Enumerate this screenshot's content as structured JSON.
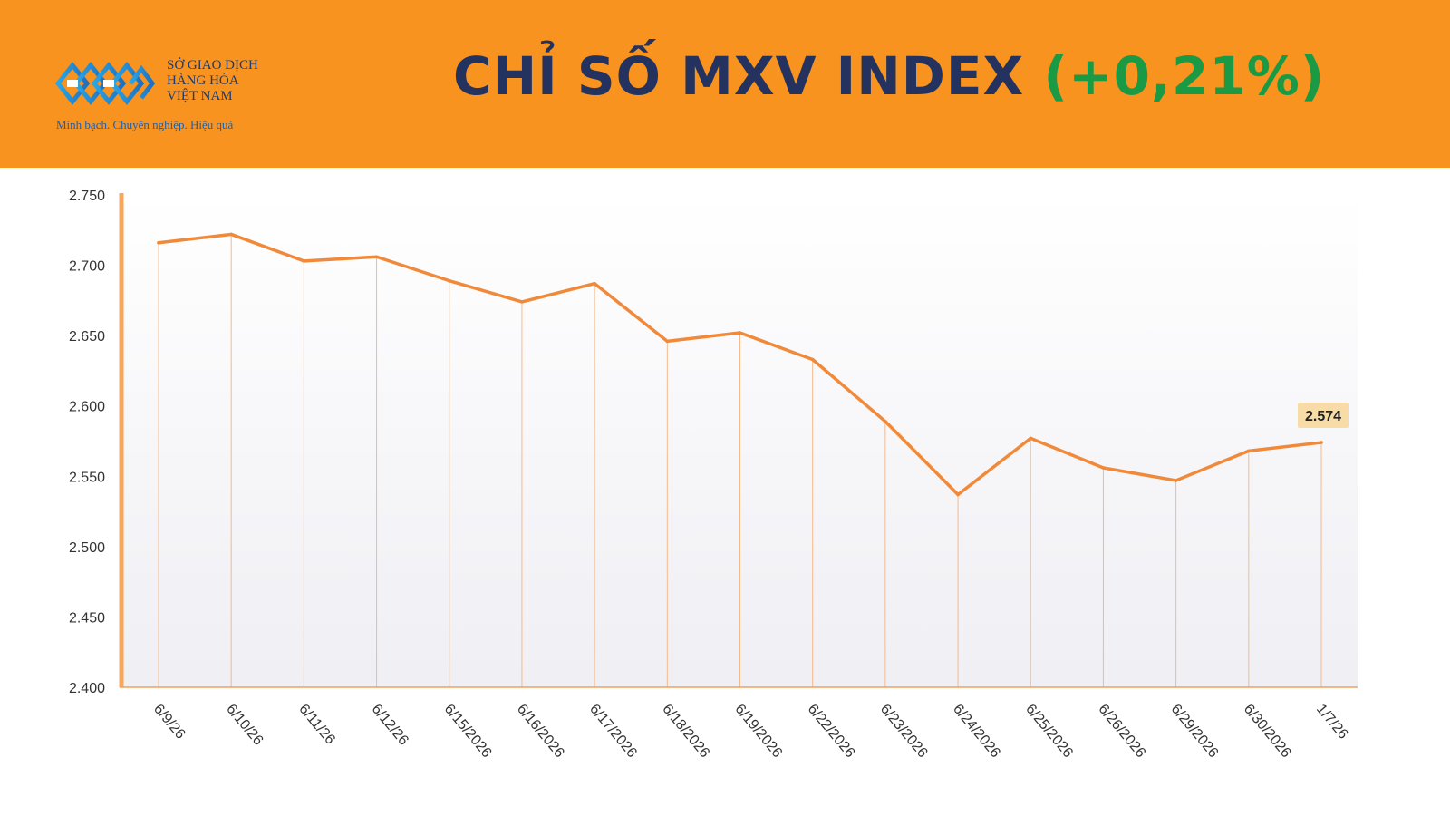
{
  "header": {
    "logo": {
      "name_lines": [
        "SỞ GIAO DỊCH",
        "HÀNG HÓA",
        "VIỆT NAM"
      ],
      "slogan": "Minh bạch. Chuyên nghiệp. Hiệu quả"
    },
    "title_main": "CHỈ SỐ MXV INDEX",
    "title_change": "(+0,21%)",
    "colors": {
      "background": "#f7931e",
      "title": "#23325e",
      "change": "#1a9a44"
    }
  },
  "chart_data": {
    "type": "line",
    "x": [
      "6/9/26",
      "6/10/26",
      "6/11/26",
      "6/12/26",
      "6/15/2026",
      "6/16/2026",
      "6/17/2026",
      "6/18/2026",
      "6/19/2026",
      "6/22/2026",
      "6/23/2026",
      "6/24/2026",
      "6/25/2026",
      "6/26/2026",
      "6/29/2026",
      "6/30/2026",
      "1/7/26"
    ],
    "series": [
      {
        "values": [
          2716,
          2722,
          2703,
          2706,
          2689,
          2674,
          2687,
          2646,
          2652,
          2633,
          2589,
          2537,
          2577,
          2556,
          2547,
          2568,
          2574
        ]
      }
    ],
    "y_ticks": [
      "2.400",
      "2.450",
      "2.500",
      "2.550",
      "2.600",
      "2.650",
      "2.700",
      "2.750"
    ],
    "ylim": [
      2400,
      2750
    ],
    "last_value_label": "2.574",
    "line_color": "#f08a3a",
    "grid": false,
    "title": "",
    "xlabel": "",
    "ylabel": ""
  }
}
